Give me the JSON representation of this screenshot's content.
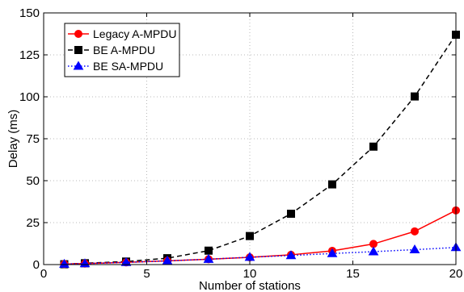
{
  "chart_data": {
    "type": "line",
    "title": "",
    "xlabel": "Number of stations",
    "ylabel": "Delay (ms)",
    "xlim": [
      0,
      20
    ],
    "ylim": [
      0,
      150
    ],
    "xticks": [
      0,
      5,
      10,
      15,
      20
    ],
    "yticks": [
      0,
      25,
      50,
      75,
      100,
      125,
      150
    ],
    "grid": true,
    "legend_position": "top-left",
    "x": [
      1,
      2,
      4,
      6,
      8,
      10,
      12,
      14,
      16,
      18,
      20
    ],
    "series": [
      {
        "name": "Legacy A-MPDU",
        "values": [
          0.3,
          0.6,
          1.3,
          2.2,
          3.2,
          4.3,
          5.8,
          8.2,
          12.3,
          19.8,
          32.3
        ],
        "color": "#ff0000",
        "line_style": "solid",
        "marker": "circle"
      },
      {
        "name": "BE A-MPDU",
        "values": [
          0.2,
          0.8,
          1.8,
          3.8,
          8.3,
          17.0,
          30.3,
          47.8,
          70.3,
          100.2,
          137.0
        ],
        "color": "#000000",
        "line_style": "dashed",
        "marker": "square"
      },
      {
        "name": "BE SA-MPDU",
        "values": [
          0.3,
          0.6,
          1.3,
          2.2,
          3.2,
          4.4,
          5.4,
          6.6,
          7.7,
          8.9,
          10.2
        ],
        "color": "#0000ff",
        "line_style": "dotted",
        "marker": "triangle"
      }
    ]
  }
}
